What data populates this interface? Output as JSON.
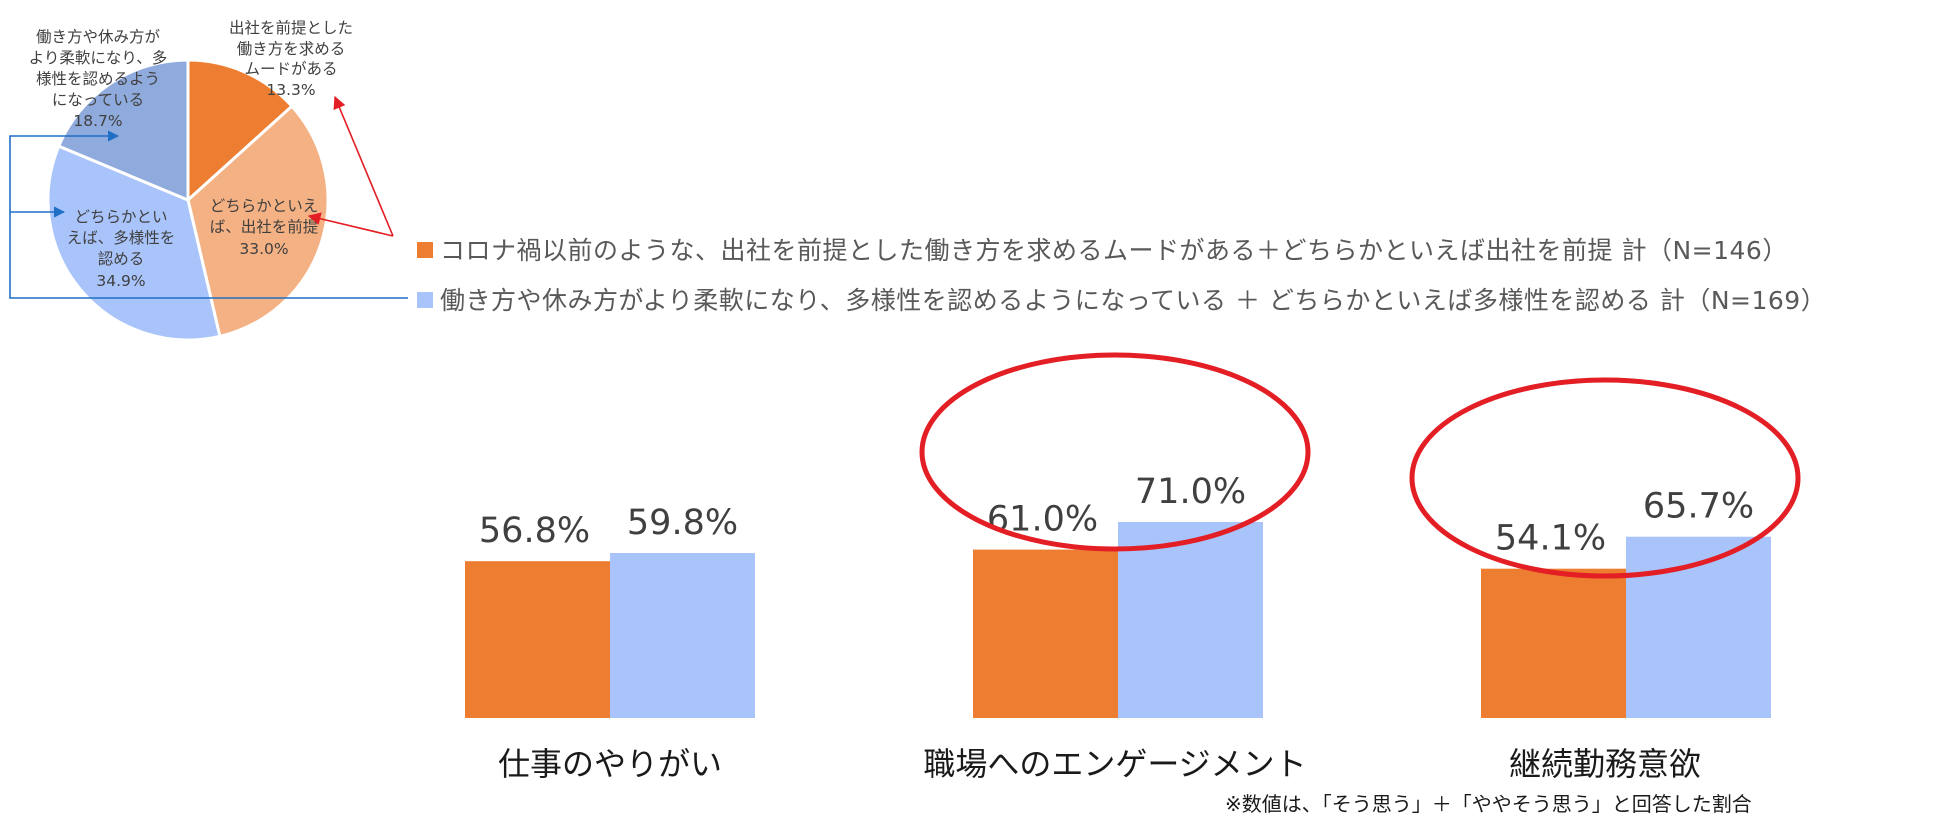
{
  "colors": {
    "orange": "#ED7D31",
    "orange_light": "#F4B183",
    "blue_light": "#A9C4FB",
    "blue_mid": "#8FAADC",
    "blue_arrow": "#1F6FC5",
    "red": "#E31E24"
  },
  "chart_data": [
    {
      "type": "pie",
      "slices": [
        {
          "label": "出社を前提とした働き方を求めるムードがある",
          "display_lines": [
            "出社を前提とした",
            "働き方を求める",
            "ムードがある",
            "13.3%"
          ],
          "value": 13.3,
          "color": "#ED7D31"
        },
        {
          "label": "どちらかといえば、出社を前提",
          "display_lines": [
            "どちらかといえ",
            "ば、出社を前提",
            "33.0%"
          ],
          "value": 33.0,
          "color": "#F4B183"
        },
        {
          "label": "どちらかといえば、多様性を認める",
          "display_lines": [
            "どちらかとい",
            "えば、多様性を",
            "認める",
            "34.9%"
          ],
          "value": 34.9,
          "color": "#A9C4FB"
        },
        {
          "label": "働き方や休み方がより柔軟になり、多様性を認めるようになっている",
          "display_lines": [
            "働き方や休み方が",
            "より柔軟になり、多",
            "様性を認めるよう",
            "になっている",
            "18.7%"
          ],
          "value": 18.7,
          "color": "#8FAADC"
        }
      ]
    },
    {
      "type": "bar",
      "categories": [
        "仕事のやりがい",
        "職場へのエンゲージメント",
        "継続勤務意欲"
      ],
      "series": [
        {
          "name": "コロナ禍以前のような、出社を前提とした働き方を求めるムードがある＋どちらかといえば出社を前提 計（N=146）",
          "values": [
            56.8,
            61.0,
            54.1
          ],
          "labels": [
            "56.8%",
            "61.0%",
            "54.1%"
          ],
          "color": "#ED7D31"
        },
        {
          "name": "働き方や休み方がより柔軟になり、多様性を認めるようになっている ＋ どちらかといえば多様性を認める 計（N=169）",
          "values": [
            59.8,
            71.0,
            65.7
          ],
          "labels": [
            "59.8%",
            "71.0%",
            "65.7%"
          ],
          "color": "#A9C4FB"
        }
      ],
      "highlighted_categories": [
        "職場へのエンゲージメント",
        "継続勤務意欲"
      ],
      "ylim": [
        0,
        100
      ],
      "note": "※数値は、「そう思う」＋「ややそう思う」と回答した割合"
    }
  ],
  "legend": [
    {
      "text": "コロナ禍以前のような、出社を前提とした働き方を求めるムードがある＋どちらかといえば出社を前提 計（N=146）",
      "color": "#ED7D31"
    },
    {
      "text": "働き方や休み方がより柔軟になり、多様性を認めるようになっている ＋ どちらかといえば多様性を認める 計（N=169）",
      "color": "#A9C4FB"
    }
  ]
}
